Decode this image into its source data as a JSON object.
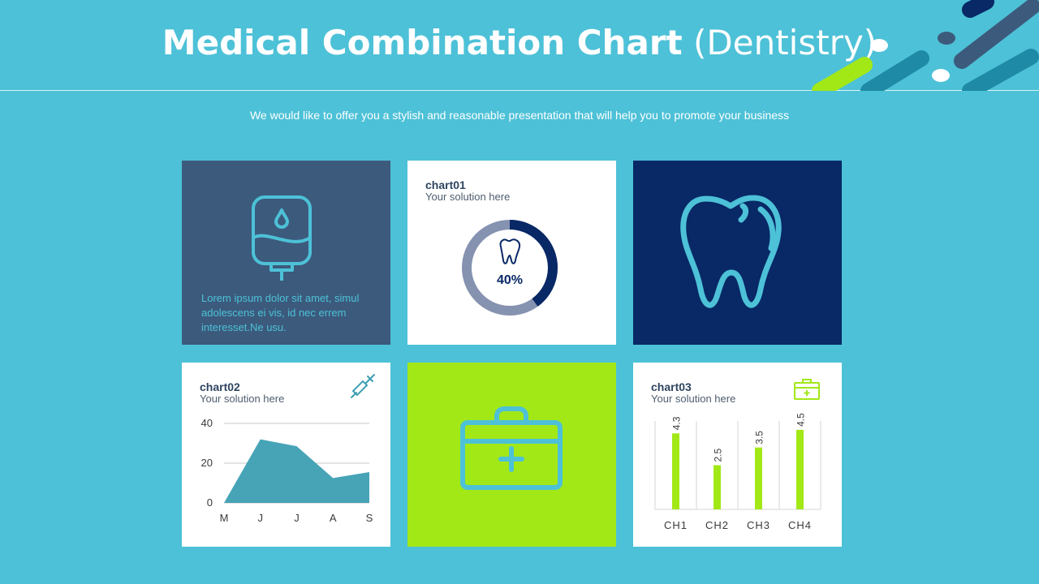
{
  "header": {
    "title_bold": "Medical Combination Chart",
    "title_light": "(Dentistry)",
    "subtitle": "We would like to offer you a stylish and reasonable presentation that will help you to promote your business"
  },
  "tile1": {
    "text": "Lorem ipsum dolor sit amet, simul adolescens ei vis, id nec errem interesset.Ne usu."
  },
  "colors": {
    "background": "#4dc1d7",
    "navy": "#082866",
    "slate": "#3c5a7c",
    "lime": "#a2e817",
    "teal": "#3d9fb3",
    "ring_gray": "#8592b0"
  },
  "chart_data": [
    {
      "type": "pie",
      "title": "chart01",
      "subtitle": "Your solution here",
      "value_label": "40%",
      "values": [
        40,
        60
      ]
    },
    {
      "type": "area",
      "title": "chart02",
      "subtitle": "Your solution here",
      "categories": [
        "M",
        "J",
        "J",
        "A",
        "S"
      ],
      "values": [
        0,
        32,
        28.5,
        12.5,
        15.5
      ],
      "yticks": [
        "0",
        "20",
        "40"
      ],
      "ylim": [
        0,
        40
      ],
      "grid": true
    },
    {
      "type": "bar",
      "title": "chart03",
      "subtitle": "Your solution here",
      "categories": [
        "CH1",
        "CH2",
        "CH3",
        "CH4"
      ],
      "values": [
        4.3,
        2.5,
        3.5,
        4.5
      ],
      "value_labels": [
        "4.3",
        "2.5",
        "3.5",
        "4.5"
      ],
      "ylim": [
        0,
        5
      ]
    }
  ]
}
